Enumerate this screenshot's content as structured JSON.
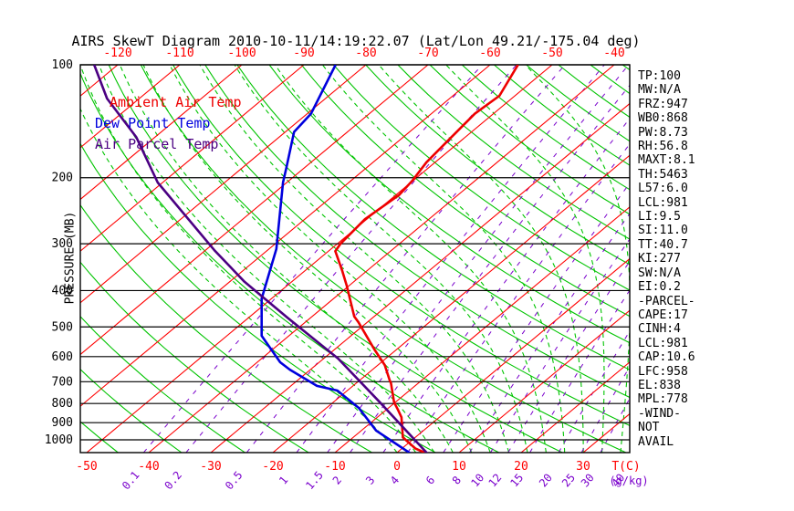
{
  "title": "AIRS SkewT Diagram 2010-10-11/14:19:22.07 (Lat/Lon 49.21/-175.04 deg)",
  "legend": {
    "ambient": {
      "label": "Ambient Air Temp",
      "color": "#ee0000"
    },
    "dewpoint": {
      "label": "Dew Point Temp",
      "color": "#0000dd"
    },
    "parcel": {
      "label": "Air Parcel Temp",
      "color": "#4b0082"
    }
  },
  "axes": {
    "pressure_label": "PRESSURE (MB)",
    "pressure_ticks": [
      100,
      200,
      300,
      400,
      500,
      600,
      700,
      800,
      900,
      1000
    ],
    "temp_ticks_top": [
      -120,
      -110,
      -100,
      -90,
      -80,
      -70,
      -60,
      -50,
      -40
    ],
    "temp_ticks_bottom": [
      -50,
      -40,
      -30,
      -20,
      -10,
      0,
      10,
      20,
      30
    ],
    "temp_unit_label": "T(C)",
    "mixing_ratio_ticks": [
      0.1,
      0.2,
      0.5,
      1,
      1.5,
      2,
      3,
      4,
      6,
      8,
      10,
      12,
      15,
      20,
      25,
      30,
      40
    ],
    "mixing_ratio_unit_label": "(g/kg)"
  },
  "stats": [
    "TP:100",
    "MW:N/A",
    "FRZ:947",
    "WB0:868",
    "PW:8.73",
    "RH:56.8",
    "MAXT:8.1",
    "TH:5463",
    "L57:6.0",
    "LCL:981",
    "LI:9.5",
    "SI:11.0",
    "TT:40.7",
    "KI:277",
    "SW:N/A",
    "EI:0.2",
    "-PARCEL-",
    "CAPE:17",
    "CINH:4",
    "LCL:981",
    "CAP:10.6",
    "LFC:958",
    "EL:838",
    "MPL:778",
    "-WIND-",
    "NOT",
    "AVAIL"
  ],
  "chart_data": {
    "type": "line",
    "variant": "skew-t-log-p",
    "title": "AIRS SkewT Diagram 2010-10-11/14:19:22.07 (Lat/Lon 49.21/-175.04 deg)",
    "xlabel": "T(C)",
    "ylabel": "PRESSURE (MB)",
    "y_scale": "log",
    "y_range_mb": [
      100,
      1081
    ],
    "x_range_c_at_surface": [
      -51,
      37.5
    ],
    "grid": {
      "isotherms_c": {
        "min": -160,
        "max": 40,
        "step": 10,
        "color": "#ff0000",
        "style": "solid"
      },
      "dry_adiabats_theta_c": {
        "min": -60,
        "max": 180,
        "step": 10,
        "color": "#00c400",
        "style": "solid"
      },
      "moist_adiabats_surface_c": {
        "min": 0,
        "max": 36,
        "step": 3,
        "color": "#00c400",
        "style": "dashed"
      },
      "mixing_ratio_gkg": {
        "values": [
          0.1,
          0.2,
          0.5,
          1,
          1.5,
          2,
          3,
          4,
          6,
          8,
          10,
          12,
          15,
          20,
          25,
          30,
          40
        ],
        "color": "#7a00cc",
        "style": "dashed"
      }
    },
    "series": [
      {
        "name": "Ambient Air Temp",
        "color": "#ee0000",
        "points_p_mb_t_c": [
          [
            100,
            -55.5
          ],
          [
            121,
            -52.5
          ],
          [
            135,
            -53.0
          ],
          [
            160,
            -52.1
          ],
          [
            182,
            -51.4
          ],
          [
            204,
            -50.1
          ],
          [
            222,
            -49.5
          ],
          [
            258,
            -50.3
          ],
          [
            300,
            -49.5
          ],
          [
            314,
            -48.9
          ],
          [
            355,
            -43.9
          ],
          [
            388,
            -40.4
          ],
          [
            469,
            -33.2
          ],
          [
            486,
            -31.4
          ],
          [
            574,
            -23.6
          ],
          [
            632,
            -18.9
          ],
          [
            695,
            -15.1
          ],
          [
            706,
            -14.4
          ],
          [
            794,
            -10.2
          ],
          [
            832,
            -8.1
          ],
          [
            871,
            -6.1
          ],
          [
            985,
            -2.0
          ],
          [
            1055,
            2.2
          ],
          [
            1088,
            5.0
          ]
        ]
      },
      {
        "name": "Dew Point Temp",
        "color": "#0000dd",
        "points_p_mb_t_c": [
          [
            100,
            -84.9
          ],
          [
            135,
            -79.4
          ],
          [
            151,
            -78.6
          ],
          [
            189,
            -72.8
          ],
          [
            206,
            -70.6
          ],
          [
            310,
            -58.8
          ],
          [
            420,
            -51.6
          ],
          [
            528,
            -44.4
          ],
          [
            621,
            -36.3
          ],
          [
            650,
            -33.3
          ],
          [
            718,
            -25.8
          ],
          [
            739,
            -21.6
          ],
          [
            822,
            -14.8
          ],
          [
            945,
            -7.6
          ],
          [
            1085,
            2.2
          ]
        ]
      },
      {
        "name": "Air Parcel Temp",
        "color": "#4b0082",
        "points_p_mb_t_c": [
          [
            100,
            -123.8
          ],
          [
            123,
            -115.2
          ],
          [
            156,
            -103.0
          ],
          [
            206,
            -90.8
          ],
          [
            312,
            -68.6
          ],
          [
            379,
            -57.6
          ],
          [
            472,
            -43.8
          ],
          [
            607,
            -27.7
          ],
          [
            794,
            -12.5
          ],
          [
            1088,
            5.1
          ]
        ]
      }
    ],
    "legend_position": "upper-left",
    "annotations": [
      "TP:100",
      "MW:N/A",
      "FRZ:947",
      "WB0:868",
      "PW:8.73",
      "RH:56.8",
      "MAXT:8.1",
      "TH:5463",
      "L57:6.0",
      "LCL:981",
      "LI:9.5",
      "SI:11.0",
      "TT:40.7",
      "KI:277",
      "SW:N/A",
      "EI:0.2",
      "-PARCEL-",
      "CAPE:17",
      "CINH:4",
      "LCL:981",
      "CAP:10.6",
      "LFC:958",
      "EL:838",
      "MPL:778",
      "-WIND-",
      "NOT",
      "AVAIL"
    ]
  }
}
